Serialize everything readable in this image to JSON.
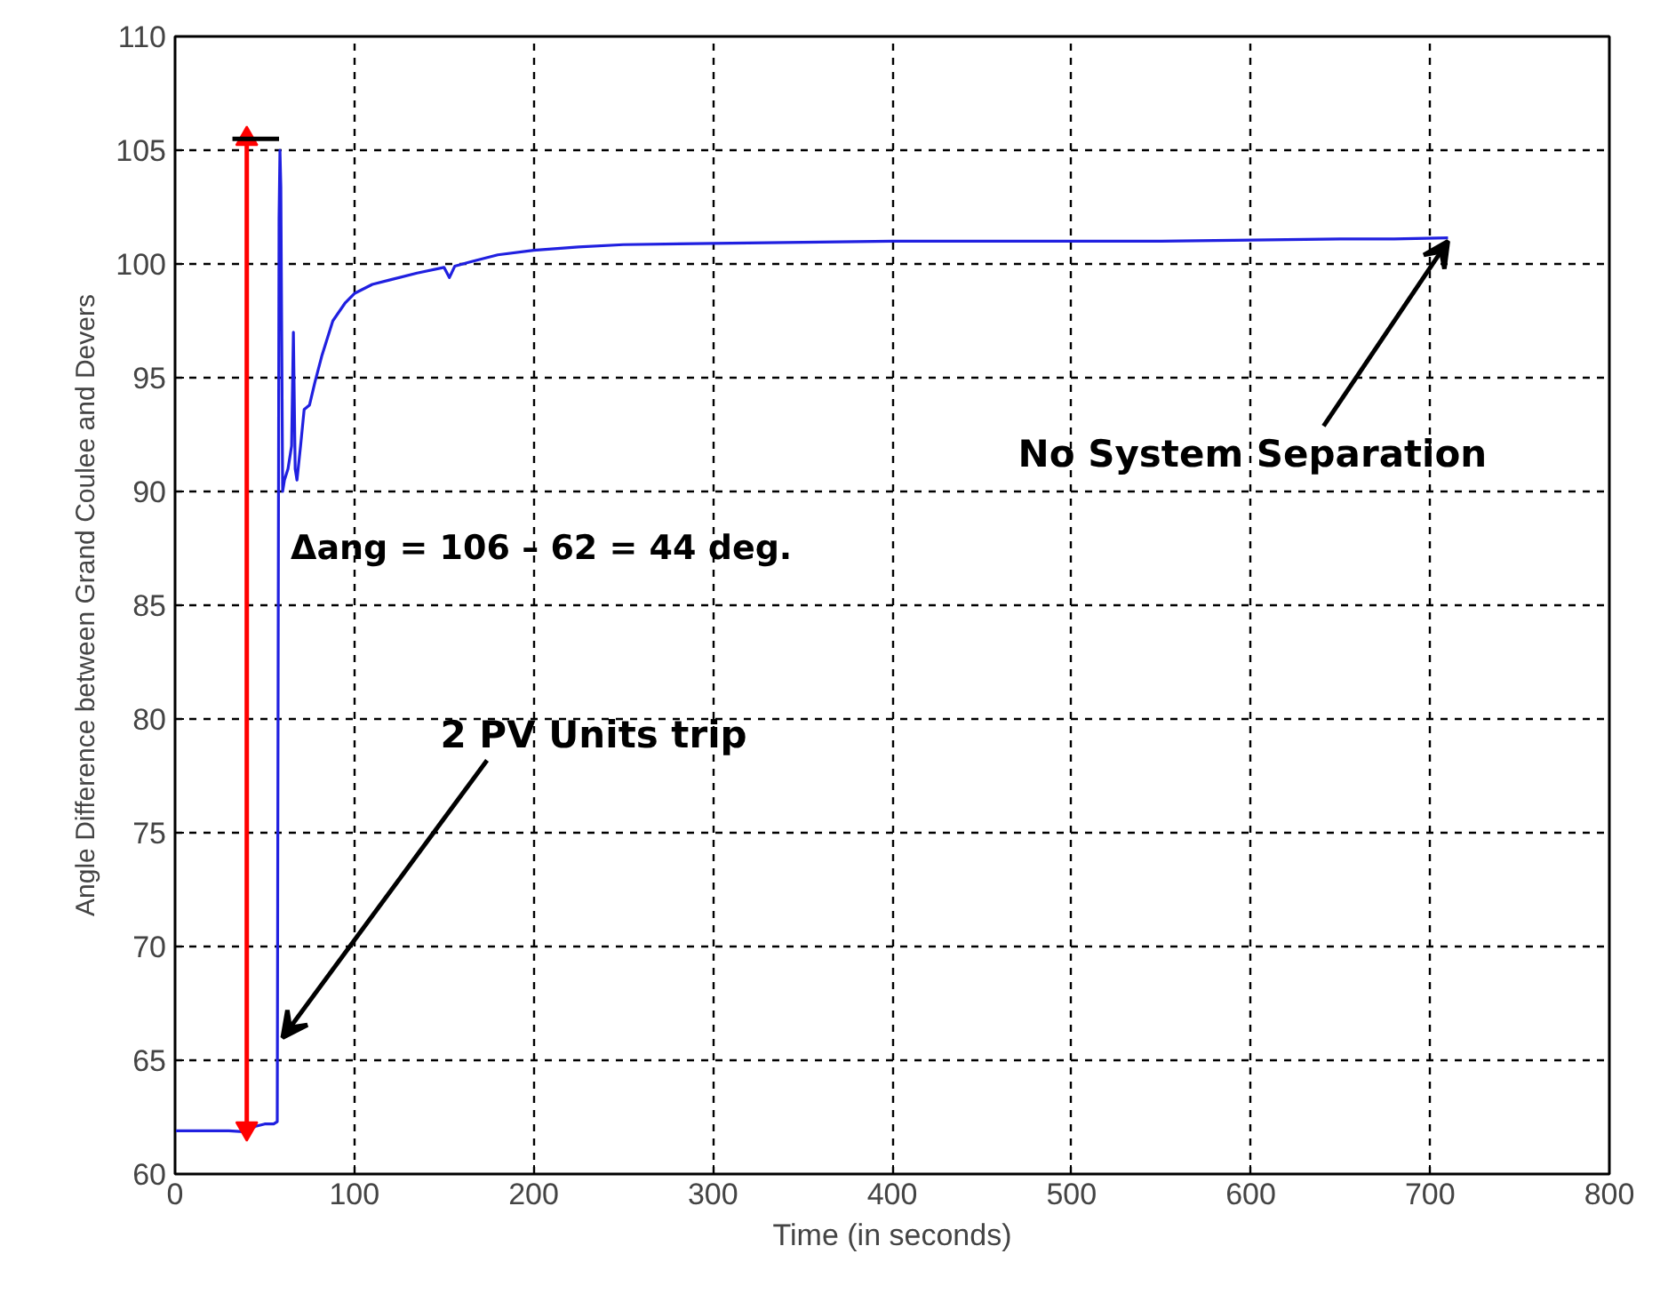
{
  "chart_data": {
    "type": "line",
    "xlabel": "Time (in seconds)",
    "ylabel": "Angle Difference between Grand Coulee and Devers",
    "series": [
      {
        "color": "#2020e0",
        "marker": "none",
        "x": [
          0,
          10,
          20,
          30,
          40,
          45,
          50,
          55,
          57,
          58,
          58.5,
          59,
          60,
          61,
          63,
          65,
          66,
          67,
          68,
          70,
          72,
          75,
          78,
          82,
          88,
          95,
          100,
          110,
          120,
          135,
          150,
          153,
          156,
          165,
          180,
          200,
          225,
          250,
          300,
          350,
          400,
          450,
          500,
          550,
          600,
          650,
          680,
          710
        ],
        "values": [
          61.9,
          61.9,
          61.9,
          61.9,
          61.85,
          62.1,
          62.2,
          62.2,
          62.3,
          102,
          105,
          103.4,
          90,
          90.5,
          91,
          92,
          97,
          91,
          90.5,
          92,
          93.6,
          93.8,
          94.8,
          96,
          97.5,
          98.3,
          98.7,
          99.1,
          99.3,
          99.6,
          99.85,
          99.4,
          99.9,
          100.1,
          100.4,
          100.6,
          100.75,
          100.85,
          100.9,
          100.95,
          101.0,
          101.0,
          101.0,
          101.0,
          101.05,
          101.1,
          101.1,
          101.15
        ]
      },
      {
        "color": "#ff0000",
        "marker": "triangle",
        "x": [
          40,
          40
        ],
        "values": [
          62,
          105.5
        ]
      },
      {
        "color": "#000000",
        "marker": "none",
        "x": [
          32,
          58
        ],
        "values": [
          105.5,
          105.5
        ]
      }
    ],
    "xlim": [
      0,
      800
    ],
    "ylim": [
      60,
      110
    ],
    "xticks": [
      0,
      100,
      200,
      300,
      400,
      500,
      600,
      700,
      800
    ],
    "yticks": [
      60,
      65,
      70,
      75,
      80,
      85,
      90,
      95,
      100,
      105,
      110
    ],
    "grid": true,
    "line_style": "solid",
    "annotations": [
      "Δang = 106 – 62 = 44 deg.",
      {
        "text": "2 PV Units trip",
        "x": 60,
        "y": 66
      },
      {
        "text": "No System Separation",
        "x": 710,
        "y": 101
      }
    ]
  }
}
